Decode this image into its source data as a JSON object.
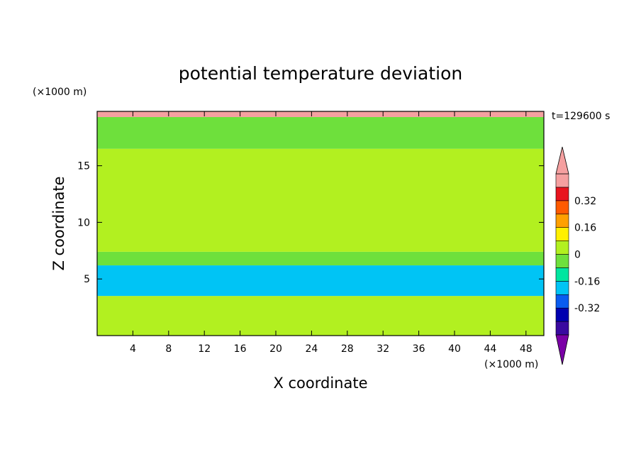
{
  "chart_data": {
    "type": "heatmap",
    "title": "potential temperature deviation",
    "time_label": "t=129600 s",
    "xlabel": "X coordinate",
    "ylabel": "Z coordinate",
    "x_unit": "(×1000 m)",
    "y_unit": "(×1000 m)",
    "xlim": [
      0,
      50
    ],
    "ylim": [
      0,
      19.8
    ],
    "x_ticks": [
      4,
      8,
      12,
      16,
      20,
      24,
      28,
      32,
      36,
      40,
      44,
      48
    ],
    "y_ticks": [
      5,
      10,
      15
    ],
    "colorbar": {
      "levels": [
        -0.48,
        -0.4,
        -0.32,
        -0.24,
        -0.16,
        -0.08,
        0,
        0.08,
        0.16,
        0.24,
        0.32,
        0.4,
        0.48
      ],
      "colors": [
        "#7a00a6",
        "#3a0aa0",
        "#0000b0",
        "#0a5cf0",
        "#00c4f5",
        "#00e6a0",
        "#6ee03c",
        "#b2f020",
        "#fff000",
        "#ffa000",
        "#ff5a00",
        "#e8141e",
        "#f5a0a0"
      ],
      "tick_labels": [
        "-0.32",
        "-0.16",
        "0",
        "0.16",
        "0.32"
      ],
      "tick_values": [
        -0.32,
        -0.16,
        0,
        0.16,
        0.32
      ],
      "extend": "both"
    },
    "field_bands": [
      {
        "z_from": 0,
        "z_to": 3.5,
        "value": 0.02
      },
      {
        "z_from": 3.5,
        "z_to": 6.2,
        "value": -0.2
      },
      {
        "z_from": 6.2,
        "z_to": 7.4,
        "value": -0.04
      },
      {
        "z_from": 7.4,
        "z_to": 16.5,
        "value": 0.04
      },
      {
        "z_from": 16.5,
        "z_to": 19.3,
        "value": -0.04
      },
      {
        "z_from": 19.3,
        "z_to": 19.8,
        "value": 0.5
      }
    ]
  }
}
